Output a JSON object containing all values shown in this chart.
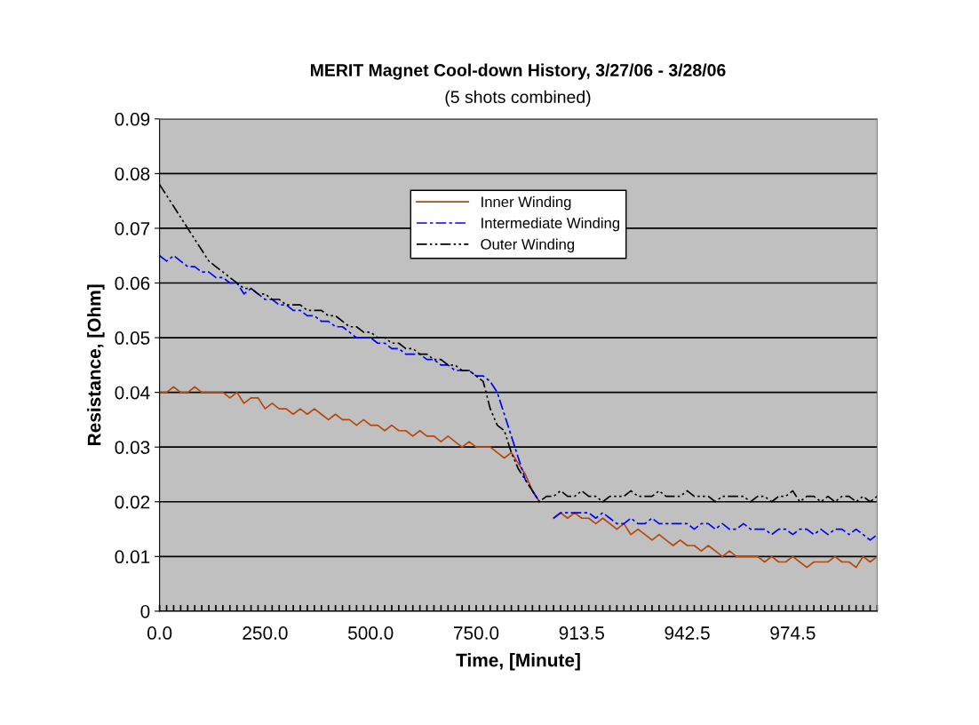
{
  "chart_data": {
    "type": "line",
    "title": "MERIT Magnet Cool-down History, 3/27/06 - 3/28/06",
    "subtitle": "(5 shots combined)",
    "xlabel": "Time, [Minute]",
    "ylabel": "Resistance, [Ohm]",
    "categories": [
      "0.0",
      null,
      null,
      null,
      null,
      null,
      null,
      null,
      null,
      null,
      null,
      null,
      null,
      null,
      null,
      "250.0",
      null,
      null,
      null,
      null,
      null,
      null,
      null,
      null,
      null,
      null,
      null,
      null,
      null,
      null,
      "500.0",
      null,
      null,
      null,
      null,
      null,
      null,
      null,
      null,
      null,
      null,
      null,
      null,
      null,
      null,
      "750.0",
      null,
      null,
      null,
      null,
      null,
      null,
      null,
      null,
      null,
      null,
      null,
      null,
      null,
      null,
      "913.5",
      null,
      null,
      null,
      null,
      null,
      null,
      null,
      null,
      null,
      null,
      null,
      null,
      null,
      null,
      "942.5",
      null,
      null,
      null,
      null,
      null,
      null,
      null,
      null,
      null,
      null,
      null,
      null,
      null,
      null,
      "974.5",
      null,
      null,
      null,
      null,
      null,
      null,
      null,
      null,
      null,
      null,
      null,
      null
    ],
    "series": [
      {
        "name": "Inner Winding",
        "color": "#b5470b",
        "line_style": "solid",
        "values": [
          0.04,
          0.04,
          0.041,
          0.04,
          0.04,
          0.041,
          0.04,
          0.04,
          0.04,
          0.04,
          0.039,
          0.04,
          0.038,
          0.039,
          0.039,
          0.037,
          0.038,
          0.037,
          0.037,
          0.036,
          0.037,
          0.036,
          0.037,
          0.036,
          0.035,
          0.036,
          0.035,
          0.035,
          0.034,
          0.035,
          0.034,
          0.034,
          0.033,
          0.034,
          0.033,
          0.033,
          0.032,
          0.033,
          0.032,
          0.032,
          0.031,
          0.032,
          0.031,
          0.03,
          0.031,
          0.03,
          0.03,
          0.03,
          0.029,
          0.028,
          0.029,
          0.027,
          0.025,
          0.022,
          0.02,
          null,
          0.017,
          0.018,
          0.017,
          0.018,
          0.017,
          0.017,
          0.016,
          0.017,
          0.016,
          0.015,
          0.016,
          0.014,
          0.015,
          0.014,
          0.013,
          0.014,
          0.013,
          0.012,
          0.013,
          0.012,
          0.012,
          0.011,
          0.012,
          0.011,
          0.01,
          0.011,
          0.01,
          0.01,
          0.01,
          0.01,
          0.009,
          0.01,
          0.009,
          0.009,
          0.01,
          0.009,
          0.008,
          0.009,
          0.009,
          0.009,
          0.01,
          0.009,
          0.009,
          0.008,
          0.01,
          0.009,
          0.01
        ]
      },
      {
        "name": "Intermediate Winding",
        "color": "#0000ff",
        "line_style": "dashed",
        "values": [
          0.065,
          0.064,
          0.065,
          0.064,
          0.063,
          0.063,
          0.062,
          0.062,
          0.061,
          0.061,
          0.06,
          0.06,
          0.058,
          0.059,
          0.058,
          0.057,
          0.057,
          0.056,
          0.056,
          0.055,
          0.055,
          0.054,
          0.054,
          0.053,
          0.053,
          0.052,
          0.052,
          0.051,
          0.05,
          0.05,
          0.05,
          0.049,
          0.049,
          0.048,
          0.048,
          0.047,
          0.047,
          0.047,
          0.046,
          0.046,
          0.045,
          0.045,
          0.044,
          0.044,
          0.044,
          0.043,
          0.043,
          0.042,
          0.04,
          0.036,
          0.032,
          0.028,
          0.024,
          0.022,
          0.02,
          null,
          0.017,
          0.018,
          0.018,
          0.018,
          0.018,
          0.018,
          0.017,
          0.018,
          0.017,
          0.016,
          0.016,
          0.017,
          0.016,
          0.016,
          0.017,
          0.016,
          0.016,
          0.016,
          0.016,
          0.016,
          0.015,
          0.016,
          0.016,
          0.015,
          0.016,
          0.015,
          0.015,
          0.016,
          0.015,
          0.015,
          0.015,
          0.014,
          0.015,
          0.015,
          0.014,
          0.015,
          0.015,
          0.014,
          0.015,
          0.014,
          0.015,
          0.015,
          0.014,
          0.015,
          0.014,
          0.013,
          0.014
        ]
      },
      {
        "name": "Outer Winding",
        "color": "#000000",
        "line_style": "dotted",
        "values": [
          0.078,
          0.076,
          0.074,
          0.072,
          0.07,
          0.068,
          0.066,
          0.064,
          0.063,
          0.062,
          0.061,
          0.06,
          0.059,
          0.059,
          0.058,
          0.058,
          0.057,
          0.057,
          0.056,
          0.056,
          0.056,
          0.055,
          0.055,
          0.055,
          0.054,
          0.054,
          0.053,
          0.052,
          0.052,
          0.051,
          0.051,
          0.05,
          0.05,
          0.049,
          0.049,
          0.048,
          0.048,
          0.047,
          0.047,
          0.046,
          0.046,
          0.045,
          0.045,
          0.044,
          0.044,
          0.043,
          0.042,
          0.037,
          0.034,
          0.033,
          0.029,
          0.026,
          0.024,
          0.022,
          0.02,
          0.021,
          0.021,
          0.022,
          0.021,
          0.021,
          0.022,
          0.021,
          0.021,
          0.02,
          0.021,
          0.021,
          0.021,
          0.022,
          0.021,
          0.021,
          0.021,
          0.022,
          0.021,
          0.021,
          0.021,
          0.022,
          0.021,
          0.021,
          0.021,
          0.02,
          0.021,
          0.021,
          0.021,
          0.021,
          0.02,
          0.021,
          0.021,
          0.02,
          0.021,
          0.021,
          0.022,
          0.02,
          0.021,
          0.021,
          0.02,
          0.021,
          0.02,
          0.021,
          0.021,
          0.02,
          0.021,
          0.02,
          0.021
        ]
      }
    ],
    "ylim": [
      0,
      0.09
    ],
    "yticks": [
      0,
      0.01,
      0.02,
      0.03,
      0.04,
      0.05,
      0.06,
      0.07,
      0.08,
      0.09
    ],
    "grid": "y",
    "legend": "top"
  }
}
